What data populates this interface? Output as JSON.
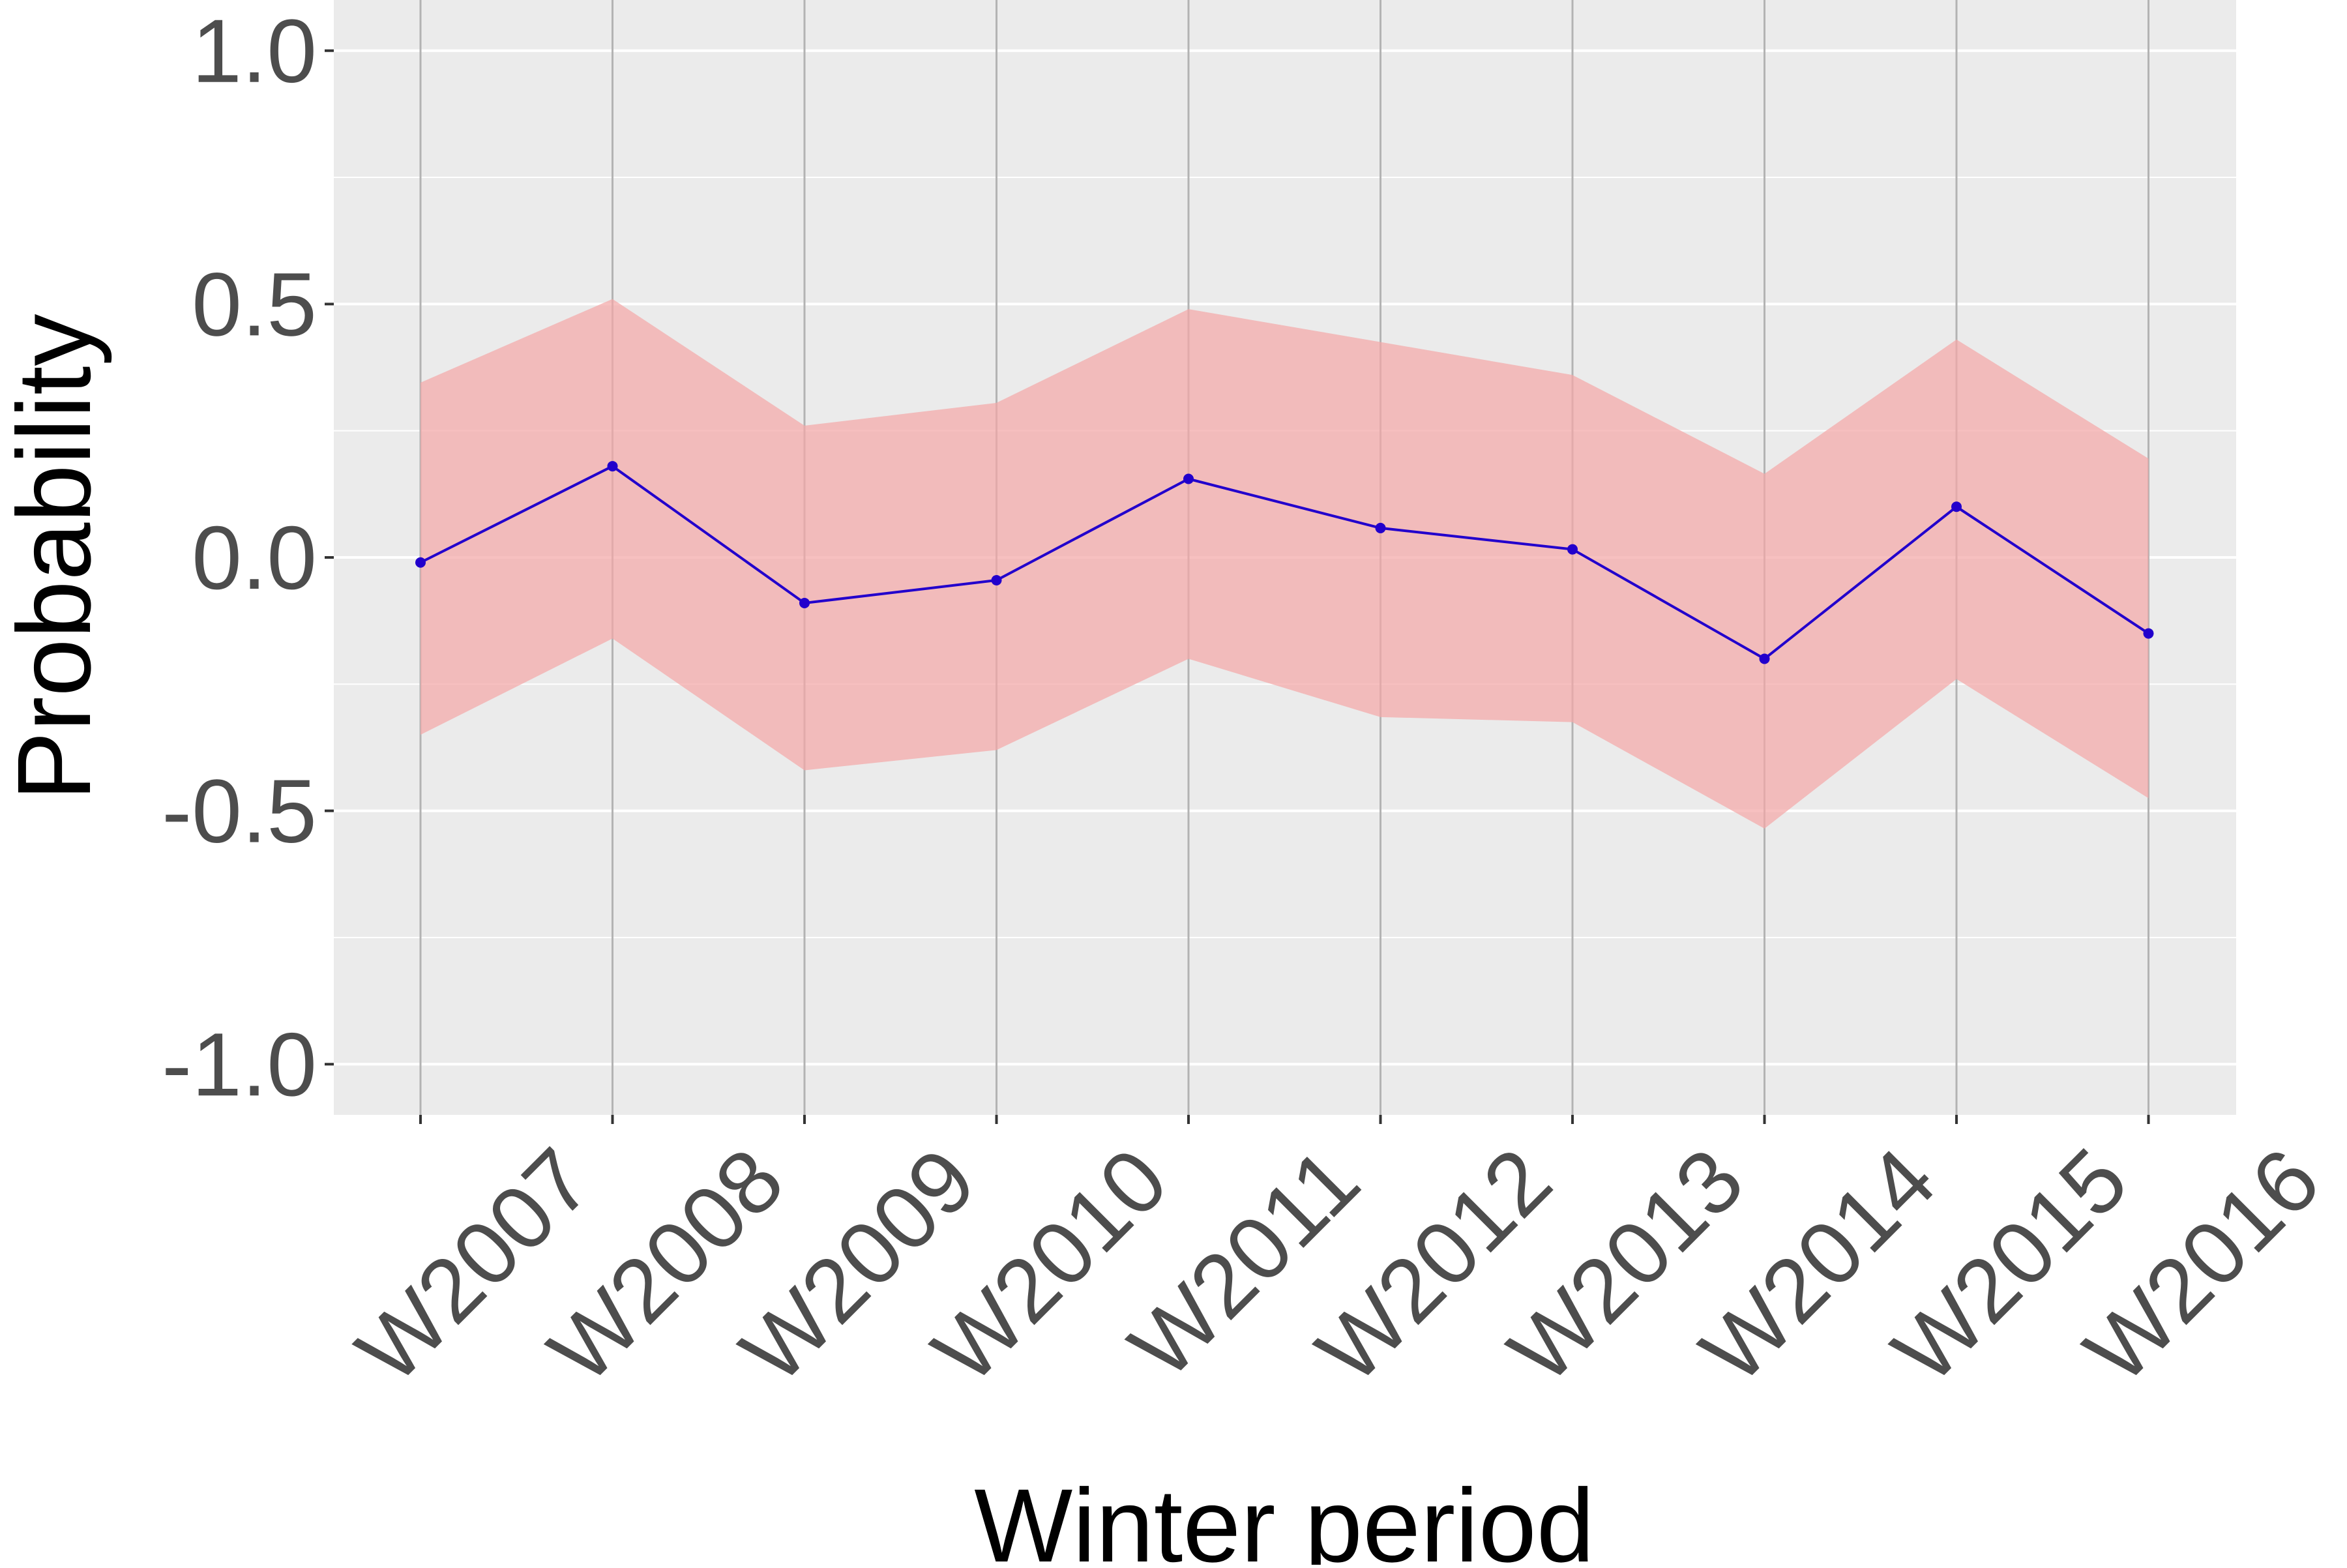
{
  "chart_data": {
    "type": "line",
    "title": "",
    "xlabel": "Winter period",
    "ylabel": "Probability",
    "categories": [
      "W2007",
      "W2008",
      "W2009",
      "W2010",
      "W2011",
      "W2012",
      "W2013",
      "W2014",
      "W2015",
      "W2016"
    ],
    "series": [
      {
        "values": [
          -0.01,
          0.18,
          -0.09,
          -0.045,
          0.155,
          0.058,
          0.016,
          -0.2,
          0.1,
          -0.15
        ],
        "lower": [
          -0.35,
          -0.16,
          -0.42,
          -0.38,
          -0.2,
          -0.315,
          -0.325,
          -0.535,
          -0.24,
          -0.475
        ],
        "upper": [
          0.345,
          0.51,
          0.26,
          0.305,
          0.49,
          0.425,
          0.36,
          0.165,
          0.43,
          0.195
        ],
        "line_color": "#2200cc",
        "band_color": "#f4a8a8"
      }
    ],
    "ylim": [
      -1.1,
      1.1
    ],
    "yticks": [
      -1.0,
      -0.5,
      0.0,
      0.5,
      1.0
    ],
    "ytick_labels": [
      "-1.0",
      "-0.5",
      "0.0",
      "0.5",
      "1.0"
    ],
    "panel_color": "#ebebeb",
    "grid": true,
    "legend": "none"
  }
}
